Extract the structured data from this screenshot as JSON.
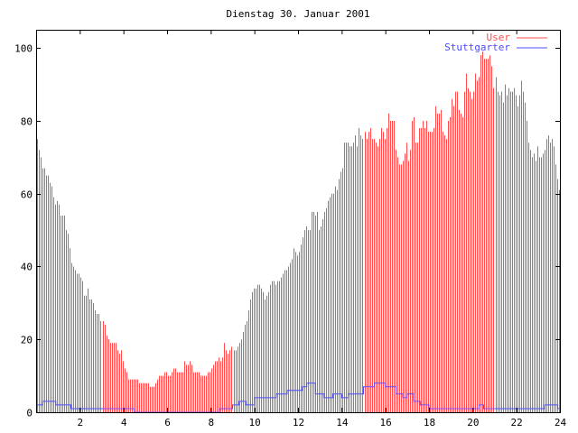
{
  "chart_data": {
    "type": "bar",
    "style": "impulses",
    "title": "Dienstag 30. Januar 2001",
    "xlabel": "",
    "ylabel": "",
    "xlim": [
      0,
      24
    ],
    "ylim": [
      0,
      105
    ],
    "xticks": [
      2,
      4,
      6,
      8,
      10,
      12,
      14,
      16,
      18,
      20,
      22,
      24
    ],
    "yticks": [
      0,
      20,
      40,
      60,
      80,
      100
    ],
    "grid": false,
    "legend_position": "top-right",
    "colors": {
      "User": "#ff4c4c",
      "Stuttgarter": "#4c4cff",
      "axes": "#000000"
    },
    "series": [
      {
        "name": "User",
        "style": "impulses",
        "x_interval_hours": "0 to 24, evenly spaced",
        "values": [
          75,
          72,
          70,
          67,
          67,
          65,
          65,
          63,
          62,
          59,
          57,
          58,
          57,
          54,
          54,
          54,
          50,
          49,
          45,
          41,
          40,
          39,
          38,
          38,
          37,
          36,
          32,
          32,
          34,
          31,
          31,
          30,
          28,
          27,
          27,
          25,
          25,
          24,
          21,
          20,
          19,
          19,
          19,
          19,
          17,
          16,
          17,
          14,
          12,
          11,
          9,
          9,
          9,
          9,
          9,
          9,
          8,
          8,
          8,
          8,
          8,
          8,
          7,
          7,
          7,
          8,
          9,
          10,
          10,
          10,
          11,
          11,
          10,
          10,
          11,
          12,
          12,
          11,
          11,
          11,
          11,
          14,
          13,
          13,
          14,
          13,
          11,
          11,
          11,
          11,
          10,
          10,
          10,
          10,
          11,
          11,
          12,
          13,
          14,
          14,
          15,
          14,
          15,
          19,
          17,
          16,
          17,
          18,
          17,
          17,
          18,
          19,
          20,
          22,
          24,
          25,
          28,
          31,
          33,
          34,
          34,
          35,
          35,
          34,
          33,
          31,
          32,
          33,
          35,
          36,
          36,
          35,
          36,
          36,
          37,
          38,
          39,
          39,
          40,
          41,
          42,
          45,
          44,
          43,
          44,
          46,
          48,
          50,
          51,
          50,
          50,
          55,
          55,
          54,
          55,
          50,
          51,
          53,
          55,
          56,
          58,
          59,
          60,
          60,
          62,
          61,
          64,
          66,
          67,
          74,
          74,
          74,
          73,
          73,
          74,
          76,
          73,
          78,
          76,
          75,
          77,
          75,
          77,
          78,
          75,
          75,
          74,
          73,
          75,
          78,
          77,
          75,
          78,
          82,
          80,
          80,
          80,
          72,
          70,
          68,
          68,
          69,
          71,
          74,
          69,
          72,
          80,
          81,
          74,
          74,
          78,
          78,
          80,
          78,
          80,
          77,
          77,
          77,
          78,
          84,
          82,
          82,
          83,
          77,
          76,
          75,
          80,
          81,
          86,
          84,
          88,
          88,
          83,
          82,
          81,
          88,
          93,
          89,
          88,
          86,
          88,
          93,
          91,
          92,
          98,
          99,
          97,
          97,
          97,
          98,
          95,
          89,
          92,
          88,
          87,
          88,
          85,
          90,
          87,
          89,
          88,
          88,
          89,
          87,
          84,
          87,
          91,
          88,
          85,
          80,
          74,
          72,
          70,
          71,
          69,
          73,
          70,
          70,
          71,
          72,
          75,
          76,
          74,
          75,
          73,
          68,
          64,
          61
        ]
      },
      {
        "name": "Stuttgarter",
        "style": "steps",
        "points": [
          [
            0,
            2
          ],
          [
            0.3,
            3
          ],
          [
            0.9,
            2
          ],
          [
            1.6,
            1
          ],
          [
            4.5,
            0
          ],
          [
            8.4,
            1
          ],
          [
            9,
            2
          ],
          [
            9.3,
            3
          ],
          [
            9.6,
            2
          ],
          [
            10,
            4
          ],
          [
            10.5,
            4
          ],
          [
            11,
            5
          ],
          [
            11.5,
            6
          ],
          [
            12.2,
            7
          ],
          [
            12.4,
            8
          ],
          [
            12.8,
            5
          ],
          [
            13.2,
            4
          ],
          [
            13.6,
            5
          ],
          [
            14,
            4
          ],
          [
            14.3,
            5
          ],
          [
            15,
            7
          ],
          [
            15.5,
            8
          ],
          [
            16,
            7
          ],
          [
            16.5,
            5
          ],
          [
            16.8,
            4
          ],
          [
            17,
            5
          ],
          [
            17.3,
            3
          ],
          [
            17.6,
            2
          ],
          [
            18,
            1
          ],
          [
            20.3,
            2
          ],
          [
            20.5,
            1
          ],
          [
            23.3,
            2
          ],
          [
            23.9,
            1
          ],
          [
            24,
            1
          ]
        ]
      }
    ]
  }
}
